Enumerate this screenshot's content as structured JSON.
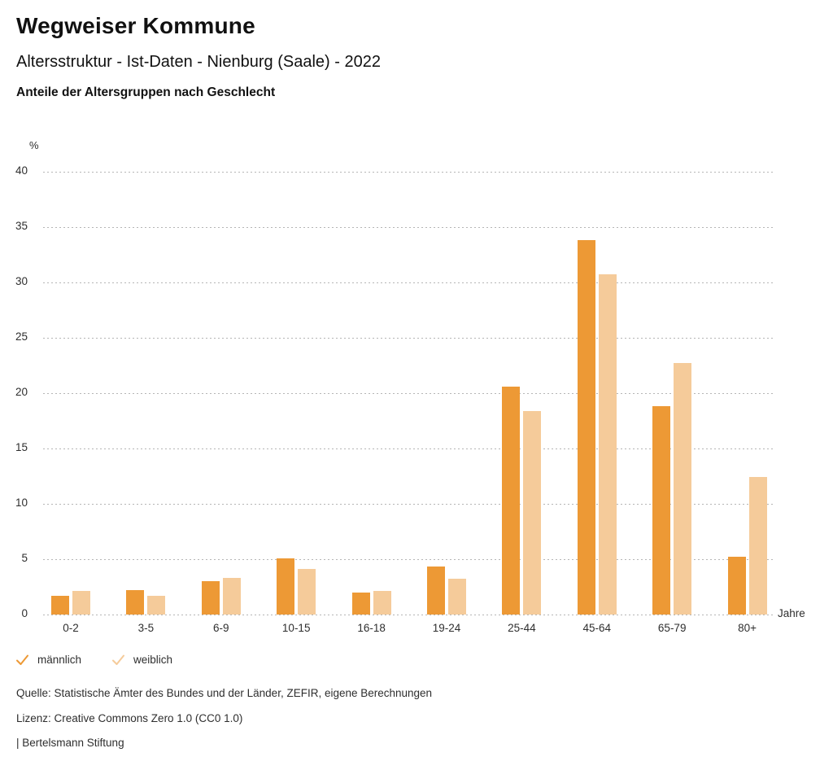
{
  "header": {
    "title": "Wegweiser Kommune",
    "subtitle": "Altersstruktur - Ist-Daten - Nienburg (Saale) - 2022",
    "chart_heading": "Anteile der Altersgruppen nach Geschlecht"
  },
  "chart_data": {
    "type": "bar",
    "title": "Anteile der Altersgruppen nach Geschlecht",
    "categories": [
      "0-2",
      "3-5",
      "6-9",
      "10-15",
      "16-18",
      "19-24",
      "25-44",
      "45-64",
      "65-79",
      "80+"
    ],
    "series": [
      {
        "name": "männlich",
        "color": "#ED9935",
        "values": [
          1.7,
          2.2,
          3.0,
          5.1,
          2.0,
          4.3,
          20.6,
          33.8,
          18.8,
          5.2
        ]
      },
      {
        "name": "weiblich",
        "color": "#F5CB9A",
        "values": [
          2.1,
          1.7,
          3.3,
          4.1,
          2.1,
          3.2,
          18.4,
          30.7,
          22.7,
          12.4
        ]
      }
    ],
    "xlabel": "Jahre",
    "ylabel": "%",
    "ylim": [
      0,
      40
    ],
    "ytick_step": 5,
    "grid": "horizontal-dotted",
    "legend_position": "bottom-left"
  },
  "legend": {
    "items": [
      {
        "label": "männlich",
        "color": "#ED9935"
      },
      {
        "label": "weiblich",
        "color": "#F5CB9A"
      }
    ]
  },
  "footer": {
    "source": "Quelle: Statistische Ämter des Bundes und der Länder, ZEFIR, eigene Berechnungen",
    "license": "Lizenz: Creative Commons Zero 1.0 (CC0 1.0)",
    "brand": "| Bertelsmann Stiftung"
  }
}
